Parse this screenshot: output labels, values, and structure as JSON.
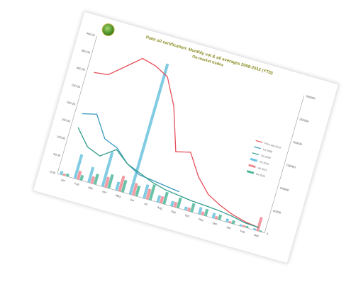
{
  "chart_data": {
    "type": "bar",
    "title": "Palm oil certification: Monthly vol & oil averages 2008-2012 (YTD)",
    "subtitle": "On-market trades",
    "categories": [
      "Jan",
      "Feb",
      "Mar",
      "Apr",
      "May",
      "Jun",
      "Jul",
      "Aug",
      "Sep",
      "Oct",
      "Nov",
      "Dec",
      "Jan",
      "Feb",
      "Mar"
    ],
    "left_axis": {
      "ticks": [
        "0.00",
        "50.00",
        "100.00",
        "150.00",
        "200.00",
        "250.00",
        "300.00",
        "350.00",
        "400.00"
      ],
      "range": [
        0,
        400
      ]
    },
    "right_axis": {
      "ticks": [
        "0",
        "50000",
        "100000",
        "150000",
        "200000",
        "250000",
        "300000"
      ],
      "range": [
        0,
        300000
      ]
    },
    "series": [
      {
        "name": "Price avg 2012",
        "kind": "line",
        "axis": "left",
        "color": "#e8505b",
        "values": [
          300,
          305,
          340,
          375,
          365,
          345,
          270,
          150,
          160,
          100,
          60,
          40,
          25,
          15,
          10
        ]
      },
      {
        "name": "Vol 2008",
        "kind": "line",
        "axis": "left",
        "color": "#3c9bc0",
        "values": [
          180,
          190,
          130,
          115,
          80,
          60,
          55,
          50,
          45,
          null,
          null,
          null,
          null,
          null,
          null
        ]
      },
      {
        "name": "Vol 2009",
        "kind": "line",
        "axis": "left",
        "color": "#2f9c8a",
        "values": [
          140,
          95,
          80,
          110,
          80,
          65,
          50,
          40,
          35,
          30,
          28,
          25,
          20,
          12,
          10
        ]
      },
      {
        "name": "Vol 2010",
        "kind": "bar",
        "axis": "left",
        "color": "#6cc3de",
        "values": [
          10,
          70,
          45,
          100,
          25,
          380,
          40,
          20,
          15,
          10,
          20,
          15,
          10,
          5,
          5
        ]
      },
      {
        "name": "Vol 2011",
        "kind": "bar",
        "axis": "left",
        "color": "#f08a92",
        "values": [
          5,
          25,
          20,
          30,
          45,
          35,
          30,
          20,
          15,
          10,
          10,
          8,
          5,
          5,
          40
        ]
      },
      {
        "name": "Vol 2012",
        "kind": "bar",
        "axis": "left",
        "color": "#4fb89a",
        "values": [
          8,
          15,
          30,
          40,
          35,
          30,
          45,
          35,
          30,
          25,
          20,
          15,
          10,
          5,
          4
        ]
      }
    ],
    "legend_position": "right"
  }
}
